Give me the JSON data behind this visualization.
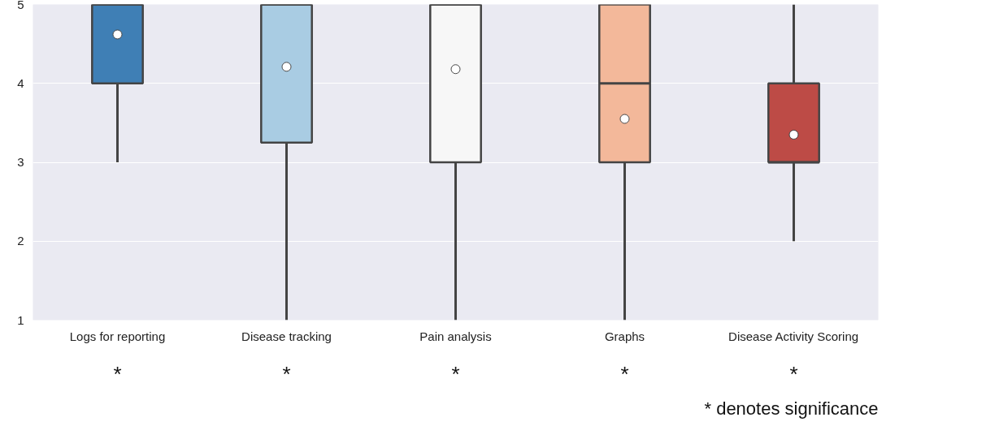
{
  "chart_data": {
    "type": "box",
    "categories": [
      "Logs for reporting",
      "Disease tracking",
      "Pain analysis",
      "Graphs",
      "Disease Activity Scoring"
    ],
    "colors": [
      "#3f7fb5",
      "#a9cce3",
      "#f7f7f7",
      "#f3b89a",
      "#bd4b46"
    ],
    "boxes": [
      {
        "low": 3,
        "q1": 4,
        "median": 5,
        "q3": 5,
        "high": 5,
        "mean": 4.62
      },
      {
        "low": 1,
        "q1": 3.25,
        "median": 5,
        "q3": 5,
        "high": 5,
        "mean": 4.21
      },
      {
        "low": 1,
        "q1": 3,
        "median": 5,
        "q3": 5,
        "high": 5,
        "mean": 4.18
      },
      {
        "low": 1,
        "q1": 3,
        "median": 4,
        "q3": 5,
        "high": 5,
        "mean": 3.55
      },
      {
        "low": 2,
        "q1": 3,
        "median": 3,
        "q3": 4,
        "high": 5,
        "mean": 3.35
      }
    ],
    "ylim": [
      1,
      5
    ],
    "yticks": [
      1,
      2,
      3,
      4,
      5
    ],
    "grid": "y",
    "annotations": [
      "*",
      "*",
      "*",
      "*",
      "*",
      "* denotes significance"
    ]
  }
}
